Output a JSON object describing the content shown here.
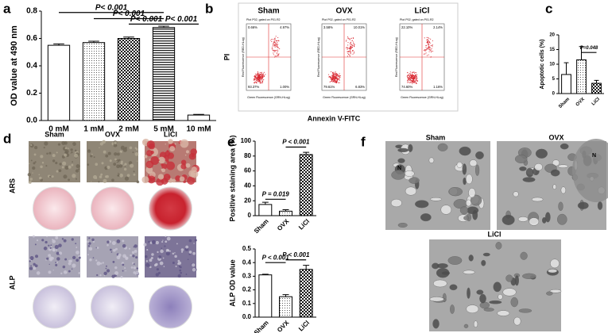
{
  "chart_data": [
    {
      "type": "bar",
      "panel_label": "a",
      "ylabel": "OD value at 490 nm",
      "categories": [
        "0 mM",
        "1 mM",
        "2 mM",
        "5 mM",
        "10 mM"
      ],
      "values": [
        0.55,
        0.57,
        0.6,
        0.68,
        0.04
      ],
      "errors": [
        0.01,
        0.01,
        0.01,
        0.01,
        0.005
      ],
      "patterns": [
        "none",
        "dots",
        "checker",
        "hstripes",
        "none"
      ],
      "ylim": [
        0,
        0.8
      ],
      "yticks": [
        {
          "value": 0,
          "label": "0.0"
        },
        0.2,
        0.4,
        0.6,
        0.8
      ],
      "annotations": [
        {
          "text": "P< 0.001",
          "from": 0,
          "to": 3,
          "y": 0.79
        },
        {
          "text": "P< 0.001",
          "from": 1,
          "to": 3,
          "y": 0.745
        },
        {
          "text": "P< 0.001",
          "from": 2,
          "to": 3,
          "y": 0.705
        },
        {
          "text": "P< 0.001",
          "from": 3,
          "to": 4,
          "y": 0.705
        }
      ]
    },
    {
      "type": "bar",
      "panel_label": "c",
      "ylabel": "Apoptotic cells (%)",
      "categories": [
        "Sham",
        "OVX",
        "LiCl"
      ],
      "values": [
        6.5,
        11.5,
        3.5
      ],
      "errors": [
        4,
        4.5,
        1
      ],
      "patterns": [
        "none",
        "dots",
        "checker"
      ],
      "ylim": [
        0,
        20
      ],
      "yticks": [
        0,
        5,
        10,
        15,
        20
      ],
      "annotations": [
        {
          "text": "P=0.048",
          "from": 1,
          "to": 2,
          "y": 14
        }
      ]
    },
    {
      "type": "bar",
      "panel_label": "e",
      "ylabel": "Positive staining area (%)",
      "categories": [
        "Sham",
        "OVX",
        "LiCl"
      ],
      "values": [
        15,
        6,
        82
      ],
      "errors": [
        3,
        2,
        3
      ],
      "patterns": [
        "none",
        "dots",
        "checker"
      ],
      "ylim": [
        0,
        100
      ],
      "yticks": [
        0,
        20,
        40,
        60,
        80,
        100
      ],
      "annotations": [
        {
          "text": "P = 0.019",
          "from": 0,
          "to": 1,
          "y": 22
        },
        {
          "text": "P < 0.001",
          "from": 1,
          "to": 2,
          "y": 92
        }
      ]
    },
    {
      "type": "bar",
      "ylabel": "ALP OD value",
      "categories": [
        "Sham",
        "OVX",
        "LiCl"
      ],
      "values": [
        0.31,
        0.15,
        0.35
      ],
      "errors": [
        0.005,
        0.015,
        0.03
      ],
      "patterns": [
        "none",
        "dots",
        "checker"
      ],
      "ylim": [
        0,
        0.5
      ],
      "yticks": [
        {
          "value": 0,
          "label": "0.0"
        },
        0.1,
        0.2,
        0.3,
        0.4,
        0.5
      ],
      "annotations": [
        {
          "text": "P < 0.001",
          "from": 0,
          "to": 1,
          "y": 0.4
        },
        {
          "text": "P < 0.001",
          "from": 1,
          "to": 2,
          "y": 0.42
        }
      ]
    }
  ],
  "flow_cytometry": {
    "panel_label": "b",
    "y_label": "PI",
    "x_label": "Annexin  V-FITC",
    "plots": [
      {
        "title": "Sham",
        "header": "Plot P02, gated on P01.R2",
        "y_axis": "Red Fluorescence (RED-HLog)",
        "x_axis": "Green Fluorescence (GRN-HLog)",
        "quadrants": [
          "0.66%",
          "4.97%",
          "93.37%",
          "1.00%"
        ]
      },
      {
        "title": "OVX",
        "header": "Plot P02, gated on P01.R2",
        "y_axis": "Red Fluorescence (RED-HLog)",
        "x_axis": "Green Fluorescence (GRN-HLog)",
        "quadrants": [
          "3.58%",
          "10.01%",
          "79.61%",
          "6.83%"
        ]
      },
      {
        "title": "LiCl",
        "header": "Plot P02, gated on P01.R2",
        "y_axis": "Red Fluorescence (RED-HLog)",
        "x_axis": "Green Fluorescence (GRN-HLog)",
        "quadrants": [
          "22.10%",
          "2.14%",
          "74.60%",
          "1.16%"
        ]
      }
    ]
  },
  "staining": {
    "panel_label": "d",
    "columns": [
      "Sham",
      "OVX",
      "LiCl"
    ],
    "rows": [
      "ARS",
      "ALP"
    ]
  },
  "tem": {
    "panel_label": "f",
    "titles": [
      "Sham",
      "OVX",
      "LiCl"
    ],
    "markers": [
      "N",
      "N"
    ]
  }
}
